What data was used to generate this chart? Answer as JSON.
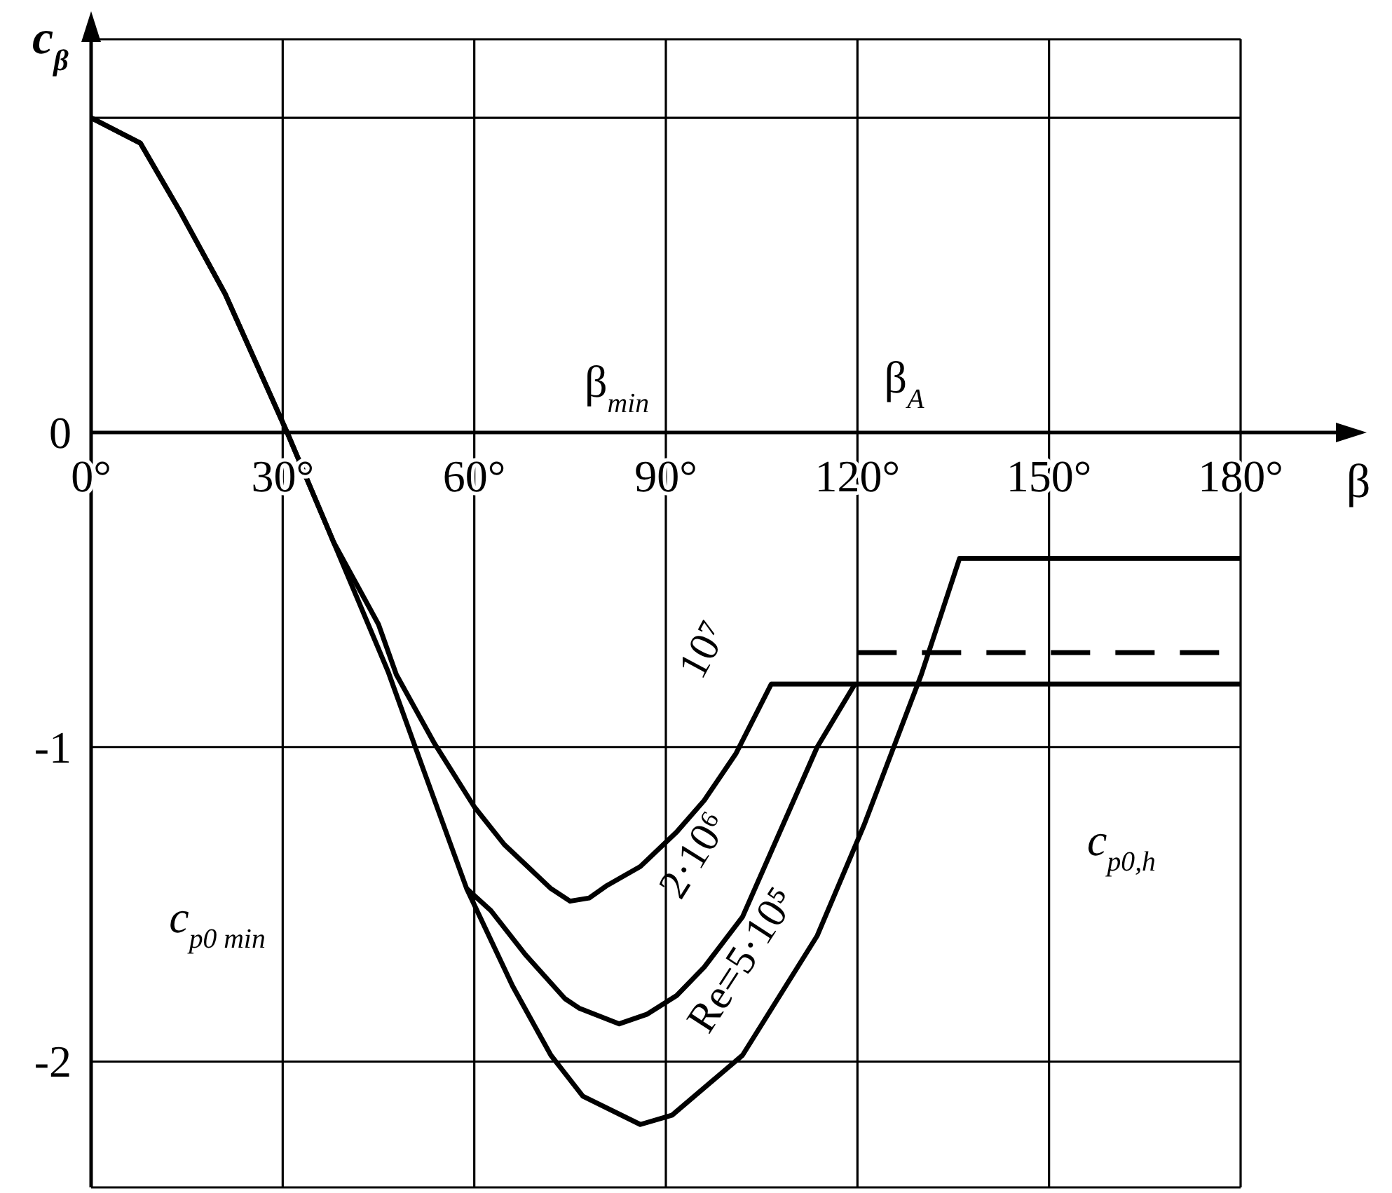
{
  "chart_data": {
    "type": "line",
    "xlabel": "β",
    "ylabel": "c$_{β}$",
    "xlim": [
      0,
      180
    ],
    "ylim": [
      -2.4,
      1.25
    ],
    "xticks": [
      {
        "value": 0,
        "label": "0°"
      },
      {
        "value": 30,
        "label": "30°"
      },
      {
        "value": 60,
        "label": "60°"
      },
      {
        "value": 90,
        "label": "90°"
      },
      {
        "value": 120,
        "label": "120°"
      },
      {
        "value": 150,
        "label": "150°"
      },
      {
        "value": 180,
        "label": "180°"
      }
    ],
    "yticks": [
      {
        "value": 1,
        "label": null
      },
      0,
      -1,
      -2
    ],
    "grid": true,
    "series": [
      {
        "name": "10⁷",
        "color": "#000000",
        "x": [
          0,
          7.7,
          14,
          21,
          30.7,
          38,
          45,
          47.8,
          53.8,
          60,
          64.7,
          72,
          75,
          78,
          80.8,
          86,
          91.7,
          96,
          101,
          106.5,
          180
        ],
        "values": [
          1,
          0.92,
          0.7,
          0.44,
          0,
          -0.35,
          -0.61,
          -0.77,
          -0.99,
          -1.19,
          -1.31,
          -1.45,
          -1.49,
          -1.48,
          -1.44,
          -1.38,
          -1.27,
          -1.17,
          -1.02,
          -0.8,
          -0.8
        ]
      },
      {
        "name": "2·10⁶",
        "color": "#000000",
        "x": [
          58.8,
          62.6,
          68,
          74.2,
          76.4,
          82.7,
          87,
          91.7,
          96,
          102,
          113.7,
          119.6
        ],
        "values": [
          -1.45,
          -1.52,
          -1.66,
          -1.8,
          -1.83,
          -1.88,
          -1.85,
          -1.79,
          -1.7,
          -1.54,
          -1,
          -0.8
        ]
      },
      {
        "name": "Re=5·10⁵",
        "color": "#000000",
        "x": [
          0,
          7.7,
          14,
          21,
          30.7,
          38,
          46.5,
          52,
          58.8,
          66,
          72,
          77,
          86,
          91,
          102,
          113.7,
          121,
          130,
          136,
          180
        ],
        "values": [
          1,
          0.92,
          0.7,
          0.44,
          0,
          -0.35,
          -0.76,
          -1.07,
          -1.45,
          -1.76,
          -1.98,
          -2.11,
          -2.2,
          -2.17,
          -1.98,
          -1.6,
          -1.25,
          -0.77,
          -0.4,
          -0.4
        ]
      },
      {
        "color": "#000000",
        "line_style": "dashed",
        "x": [
          120,
          180
        ],
        "values": [
          -0.7,
          -0.7
        ]
      }
    ],
    "annotations": [
      "β$_{min}$",
      "β$_{A}$",
      "c$_{p0 min}$",
      "c$_{p0,h}$"
    ]
  }
}
